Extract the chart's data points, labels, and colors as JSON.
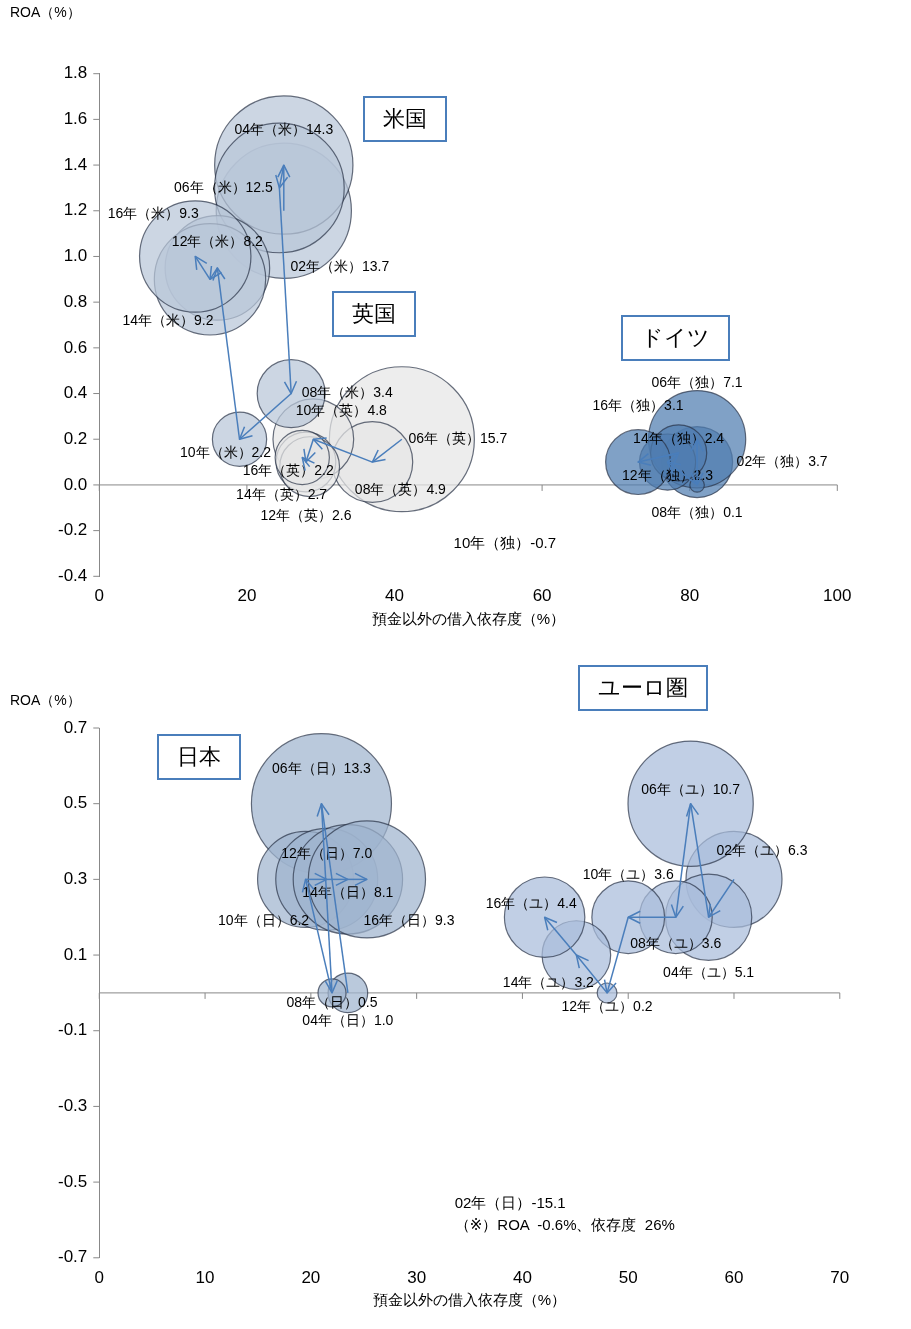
{
  "chart_data": [
    {
      "type": "bubble",
      "xlabel": "預金以外の借入依存度（%）",
      "ylabel": "ROA（%）",
      "xlim": [
        0,
        100
      ],
      "xticks": [
        0,
        20,
        40,
        60,
        80,
        100
      ],
      "ylim": [
        -0.4,
        1.8
      ],
      "yticks": [
        -0.4,
        -0.2,
        {
          "value": 0,
          "label": "0.0"
        },
        0.2,
        0.4,
        0.6,
        0.8,
        {
          "value": 1,
          "label": "1.0"
        },
        1.2,
        1.4,
        1.6,
        1.8
      ],
      "grid": false,
      "legend": false,
      "ref_lines": [
        {
          "axis": "y",
          "value": 0
        }
      ],
      "series": [
        {
          "name": "米国",
          "color": "#b9c6d8",
          "x": [
            25,
            25,
            24.4,
            26,
            19,
            16,
            15,
            13
          ],
          "values": [
            1.2,
            1.4,
            1.3,
            0.4,
            0.2,
            0.95,
            0.9,
            1.0
          ],
          "sizes": [
            0.87,
            0.91,
            0.8,
            0.22,
            0.14,
            0.52,
            0.59,
            0.59
          ],
          "value_labels": [
            "02年（米）13.7",
            "04年（米）14.3",
            "06年（米）12.5",
            "08年（米）3.4",
            "10年（米）2.2",
            "12年（米）8.2",
            "14年（米）9.2",
            "16年（米）9.3"
          ]
        },
        {
          "name": "英国",
          "color": "#e6e6e6",
          "x": [
            41,
            37,
            29,
            28,
            28.5,
            27.5
          ],
          "values": [
            0.2,
            0.1,
            0.2,
            0.1,
            0.08,
            0.12
          ],
          "sizes": [
            1,
            0.31,
            0.31,
            0.17,
            0.17,
            0.14
          ],
          "value_labels": [
            "06年（英）15.7",
            "08年（英）4.9",
            "10年（英）4.8",
            "12年（英）2.6",
            "14年（英）2.7",
            "16年（英）2.2"
          ]
        },
        {
          "name": "ドイツ",
          "color": "#4f7db0",
          "x": [
            81,
            81,
            81,
            77,
            78.5,
            73
          ],
          "values": [
            0.1,
            0.2,
            0,
            0.1,
            0.14,
            0.1
          ],
          "sizes": [
            0.24,
            0.45,
            0.01,
            0.15,
            0.15,
            0.2
          ],
          "value_labels": [
            "02年（独）3.7",
            "06年（独）7.1",
            "08年（独）0.1",
            "12年（独）2.3",
            "14年（独）2.4",
            "16年（独）3.1"
          ]
        }
      ],
      "annotations": [
        "10年（独）-0.7"
      ]
    },
    {
      "type": "bubble",
      "xlabel": "預金以外の借入依存度（%）",
      "ylabel": "ROA（%）",
      "xlim": [
        0,
        70
      ],
      "xticks": [
        0,
        10,
        20,
        30,
        40,
        50,
        60,
        70
      ],
      "ylim": [
        -0.7,
        0.7
      ],
      "yticks": [
        -0.7,
        -0.5,
        -0.3,
        -0.1,
        0.1,
        0.3,
        0.5,
        0.7
      ],
      "grid": false,
      "legend": false,
      "ref_lines": [
        {
          "axis": "y",
          "value": 0
        }
      ],
      "series": [
        {
          "name": "日本",
          "color": "#9fb4ce",
          "x": [
            23.5,
            21,
            22,
            19.5,
            21.5,
            23.5,
            25.3
          ],
          "values": [
            0,
            0.5,
            0,
            0.3,
            0.3,
            0.3,
            0.3
          ],
          "sizes": [
            0.08,
            1,
            0.04,
            0.47,
            0.53,
            0.61,
            0.7
          ],
          "value_labels": [
            "04年（日）1.0",
            "06年（日）13.3",
            "08年（日）0.5",
            "10年（日）6.2",
            "12年（日）7.0",
            "14年（日）8.1",
            "16年（日）9.3"
          ]
        },
        {
          "name": "ユーロ圏",
          "color": "#a9bddb",
          "x": [
            60,
            57.6,
            55.9,
            54.5,
            50,
            48,
            45.1,
            42.1
          ],
          "values": [
            0.3,
            0.2,
            0.5,
            0.2,
            0.2,
            0,
            0.1,
            0.2
          ],
          "sizes": [
            0.47,
            0.38,
            0.8,
            0.27,
            0.27,
            0.02,
            0.24,
            0.33
          ],
          "value_labels": [
            "02年（ユ）6.3",
            "04年（ユ）5.1",
            "06年（ユ）10.7",
            "08年（ユ）3.6",
            "10年（ユ）3.6",
            "12年（ユ）0.2",
            "14年（ユ）3.2",
            "16年（ユ）4.4"
          ]
        }
      ],
      "annotations": [
        "02年（日）-15.1",
        "（※）ROA  -0.6%、依存度  26%"
      ]
    }
  ]
}
